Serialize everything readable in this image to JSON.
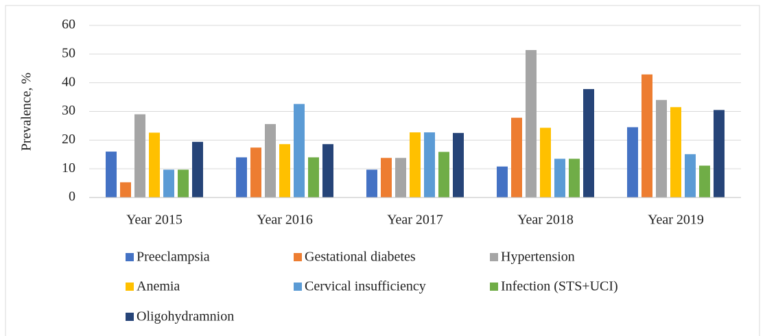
{
  "chart_data": {
    "type": "bar",
    "ylabel": "Prevalence, %",
    "categories": [
      "Year 2015",
      "Year 2016",
      "Year 2017",
      "Year 2018",
      "Year 2019"
    ],
    "series": [
      {
        "name": "Preeclampsia",
        "color": "#4472c4",
        "values": [
          16,
          14,
          9.7,
          10.8,
          24.5
        ]
      },
      {
        "name": "Gestational diabetes",
        "color": "#ed7d31",
        "values": [
          5.3,
          17.4,
          13.8,
          27.8,
          42.9
        ]
      },
      {
        "name": "Hypertension",
        "color": "#a5a5a5",
        "values": [
          29,
          25.6,
          13.8,
          51.4,
          34
        ]
      },
      {
        "name": "Anemia",
        "color": "#ffc000",
        "values": [
          22.6,
          18.6,
          22.7,
          24.3,
          31.5
        ]
      },
      {
        "name": "Cervical insufficiency",
        "color": "#5b9bd5",
        "values": [
          9.7,
          32.6,
          22.7,
          13.5,
          15.1
        ]
      },
      {
        "name": "Infection (STS+UCI)",
        "color": "#70ad47",
        "values": [
          9.7,
          14,
          15.9,
          13.5,
          11.1
        ]
      },
      {
        "name": "Oligohydramnion",
        "color": "#264478",
        "values": [
          19.4,
          18.6,
          22.5,
          37.8,
          30.5
        ]
      }
    ],
    "ylim": [
      0,
      60
    ],
    "yticks": [
      0,
      10,
      20,
      30,
      40,
      50,
      60
    ],
    "grid": true,
    "legend": "bottom"
  }
}
